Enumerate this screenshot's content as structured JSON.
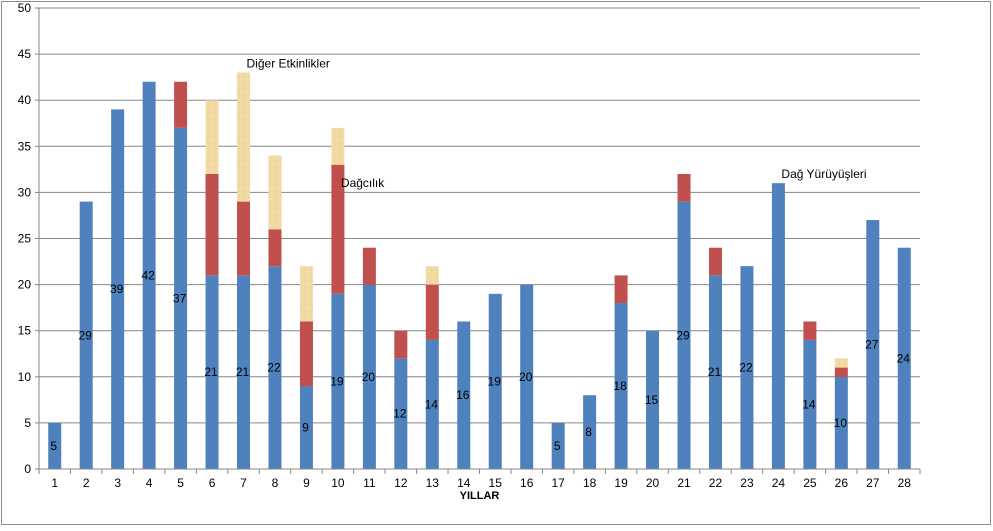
{
  "chart_data": {
    "type": "bar",
    "stacked": true,
    "xlabel": "YILLAR",
    "ylabel": "",
    "ylim": [
      0,
      50
    ],
    "yticks": [
      0,
      5,
      10,
      15,
      20,
      25,
      30,
      35,
      40,
      45,
      50
    ],
    "grid": true,
    "categories": [
      "1",
      "2",
      "3",
      "4",
      "5",
      "6",
      "7",
      "8",
      "9",
      "10",
      "11",
      "12",
      "13",
      "14",
      "15",
      "16",
      "17",
      "18",
      "19",
      "20",
      "21",
      "22",
      "23",
      "24",
      "25",
      "26",
      "27",
      "28"
    ],
    "series": [
      {
        "name": "Dağ Yürüyüşleri",
        "color": "#4f81bd",
        "values": [
          5,
          29,
          39,
          42,
          37,
          21,
          21,
          22,
          9,
          19,
          20,
          12,
          14,
          16,
          19,
          20,
          5,
          8,
          18,
          15,
          29,
          21,
          22,
          31,
          14,
          10,
          27,
          24
        ],
        "labels": [
          "5",
          "29",
          "39",
          "42",
          "37",
          "21",
          "21",
          "22",
          "9",
          "19",
          "20",
          "12",
          "14",
          "16",
          "19",
          "20",
          "5",
          "8",
          "18",
          "15",
          "29",
          "21",
          "22",
          "",
          "14",
          "10",
          "27",
          "24"
        ]
      },
      {
        "name": "Dağcılık",
        "color": "#c0504d",
        "values": [
          0,
          0,
          0,
          0,
          5,
          11,
          8,
          4,
          7,
          14,
          4,
          3,
          6,
          0,
          0,
          0,
          0,
          0,
          3,
          0,
          3,
          3,
          0,
          0,
          2,
          1,
          0,
          0
        ]
      },
      {
        "name": "Diğer Etkinlikler",
        "color": "#f2d9a0",
        "values": [
          0,
          0,
          0,
          0,
          0,
          8,
          14,
          8,
          6,
          4,
          0,
          0,
          2,
          0,
          0,
          0,
          0,
          0,
          0,
          0,
          0,
          0,
          0,
          0,
          0,
          1,
          0,
          0
        ]
      }
    ],
    "annotations": [
      {
        "text": "Diğer Etkinlikler",
        "category": "7",
        "y": 44
      },
      {
        "text": "Dağcılık",
        "category": "10",
        "y": 31
      },
      {
        "text": "Dağ Yürüyüşleri",
        "category": "24",
        "y": 32
      }
    ]
  }
}
